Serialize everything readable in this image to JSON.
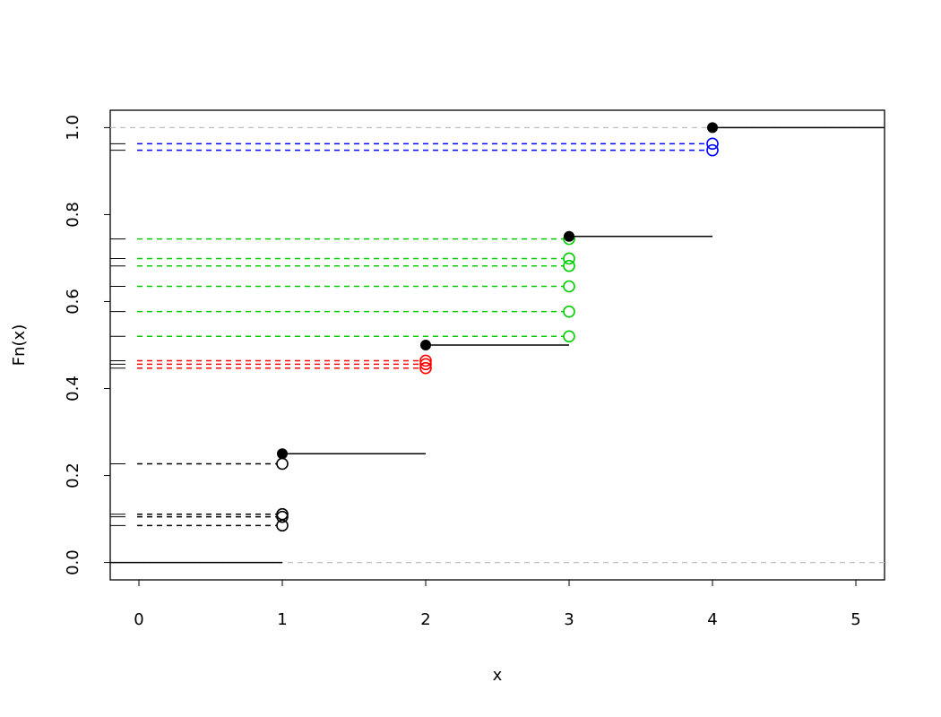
{
  "chart_data": {
    "type": "ecdf",
    "xlabel": "x",
    "ylabel": "Fn(x)",
    "xlim": [
      -0.2,
      5.2
    ],
    "ylim": [
      -0.04,
      1.04
    ],
    "xticks": [
      0,
      1,
      2,
      3,
      4,
      5
    ],
    "yticks": [
      {
        "value": 0,
        "label": "0.0"
      },
      0.2,
      0.4,
      0.6,
      0.8,
      {
        "value": 1,
        "label": "1.0"
      }
    ],
    "step": {
      "color": "#000000",
      "x": [
        1,
        2,
        3,
        4
      ],
      "values": [
        0.25,
        0.5,
        0.75,
        1
      ]
    },
    "reference_lines": {
      "color": "#bebebe",
      "values": [
        0,
        1
      ]
    },
    "series": [
      {
        "color": "#000000",
        "x": 1,
        "values": [
          0.227,
          0.111,
          0.105,
          0.085
        ]
      },
      {
        "color": "#ff0000",
        "x": 2,
        "values": [
          0.464,
          0.456,
          0.447
        ]
      },
      {
        "color": "#00cd00",
        "x": 3,
        "values": [
          0.744,
          0.699,
          0.682,
          0.635,
          0.577,
          0.52
        ]
      },
      {
        "color": "#0000ff",
        "x": 4,
        "values": [
          0.963,
          0.948
        ]
      }
    ]
  }
}
